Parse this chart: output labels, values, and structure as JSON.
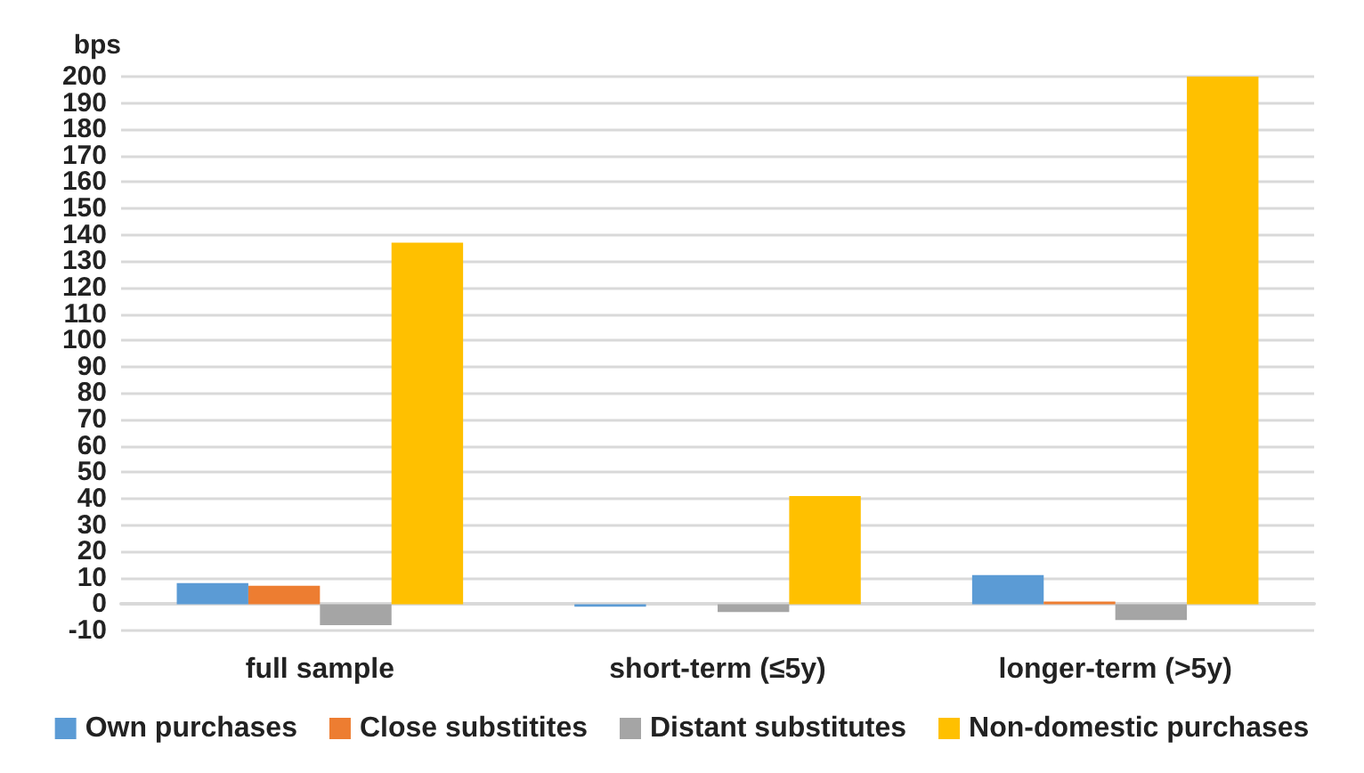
{
  "chart_data": {
    "type": "bar",
    "ylabel": "bps",
    "categories": [
      "full sample",
      "short-term (≤5y)",
      "longer-term (>5y)"
    ],
    "series": [
      {
        "name": "Own purchases",
        "color": "#5b9bd5",
        "values": [
          8,
          -1,
          11
        ]
      },
      {
        "name": "Close substitites",
        "color": "#ed7d31",
        "values": [
          7,
          0,
          1
        ]
      },
      {
        "name": "Distant substitutes",
        "color": "#a5a5a5",
        "values": [
          -8,
          -3,
          -6
        ]
      },
      {
        "name": "Non-domestic purchases",
        "color": "#ffc000",
        "values": [
          137,
          41,
          200
        ]
      }
    ],
    "ylim": [
      -10,
      200
    ],
    "yticks": [
      -10,
      0,
      10,
      20,
      30,
      40,
      50,
      60,
      70,
      80,
      90,
      100,
      110,
      120,
      130,
      140,
      150,
      160,
      170,
      180,
      190,
      200
    ],
    "grid": "y",
    "legend": "bottom"
  }
}
